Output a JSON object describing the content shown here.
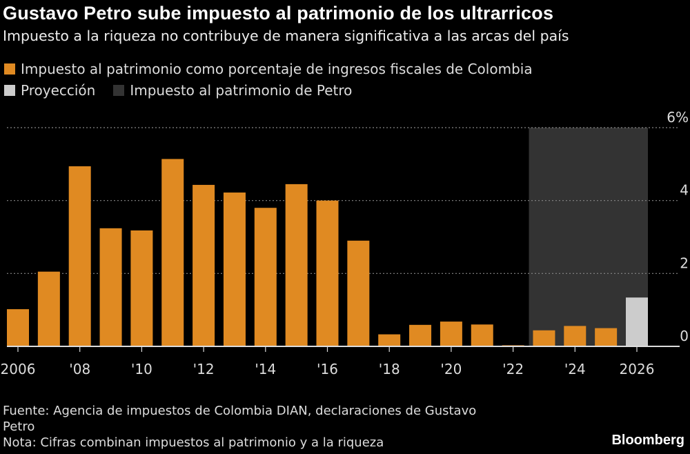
{
  "title": "Gustavo Petro sube impuesto al patrimonio de los ultrarricos",
  "subtitle": "Impuesto a la riqueza no contribuye de manera significativa a las arcas del país",
  "legend": [
    {
      "label": "Impuesto al patrimonio como porcentaje de ingresos fiscales de Colombia",
      "color": "#E08A22"
    },
    {
      "label": "Proyección",
      "color": "#CCCCCC"
    },
    {
      "label": "Impuesto al patrimonio de Petro",
      "color": "#333333"
    }
  ],
  "chart_data": {
    "type": "bar",
    "categories": [
      "2006",
      "2007",
      "2008",
      "2009",
      "2010",
      "2011",
      "2012",
      "2013",
      "2014",
      "2015",
      "2016",
      "2017",
      "2018",
      "2019",
      "2020",
      "2021",
      "2022",
      "2023",
      "2024",
      "2025",
      "2026"
    ],
    "series": [
      {
        "name": "Impuesto al patrimonio como porcentaje de ingresos fiscales de Colombia",
        "color": "#E08A22",
        "values": [
          1.02,
          2.05,
          4.94,
          3.24,
          3.18,
          5.14,
          4.43,
          4.22,
          3.8,
          4.45,
          4.0,
          2.9,
          0.33,
          0.59,
          0.68,
          0.6,
          0.03,
          0.44,
          0.56,
          0.5,
          null
        ]
      },
      {
        "name": "Proyección",
        "color": "#CCCCCC",
        "values": [
          null,
          null,
          null,
          null,
          null,
          null,
          null,
          null,
          null,
          null,
          null,
          null,
          null,
          null,
          null,
          null,
          null,
          null,
          null,
          null,
          1.34
        ]
      }
    ],
    "shaded_region": {
      "label": "Impuesto al patrimonio de Petro",
      "from": "2023",
      "to": "2026",
      "color": "#333333"
    },
    "x_tick_labels": [
      {
        "at": "2006",
        "label": "2006"
      },
      {
        "at": "2008",
        "label": "'08"
      },
      {
        "at": "2010",
        "label": "'10"
      },
      {
        "at": "2012",
        "label": "'12"
      },
      {
        "at": "2014",
        "label": "'14"
      },
      {
        "at": "2016",
        "label": "'16"
      },
      {
        "at": "2018",
        "label": "'18"
      },
      {
        "at": "2020",
        "label": "'20"
      },
      {
        "at": "2022",
        "label": "'22"
      },
      {
        "at": "2024",
        "label": "'24"
      },
      {
        "at": "2026",
        "label": "2026"
      }
    ],
    "y_ticks": [
      {
        "value": 0,
        "label": "0"
      },
      {
        "value": 2,
        "label": "2"
      },
      {
        "value": 4,
        "label": "4"
      },
      {
        "value": 6,
        "label": "6%"
      }
    ],
    "ylim": [
      0,
      6
    ],
    "y_axis_side": "right",
    "grid": true,
    "legend_position": "top-left",
    "xlabel": "",
    "ylabel": ""
  },
  "footer": {
    "source": "Fuente: Agencia de impuestos de Colombia DIAN, declaraciones de Gustavo Petro",
    "note": "Nota: Cifras combinan impuestos al patrimonio y a la riqueza"
  },
  "logo": "Bloomberg"
}
